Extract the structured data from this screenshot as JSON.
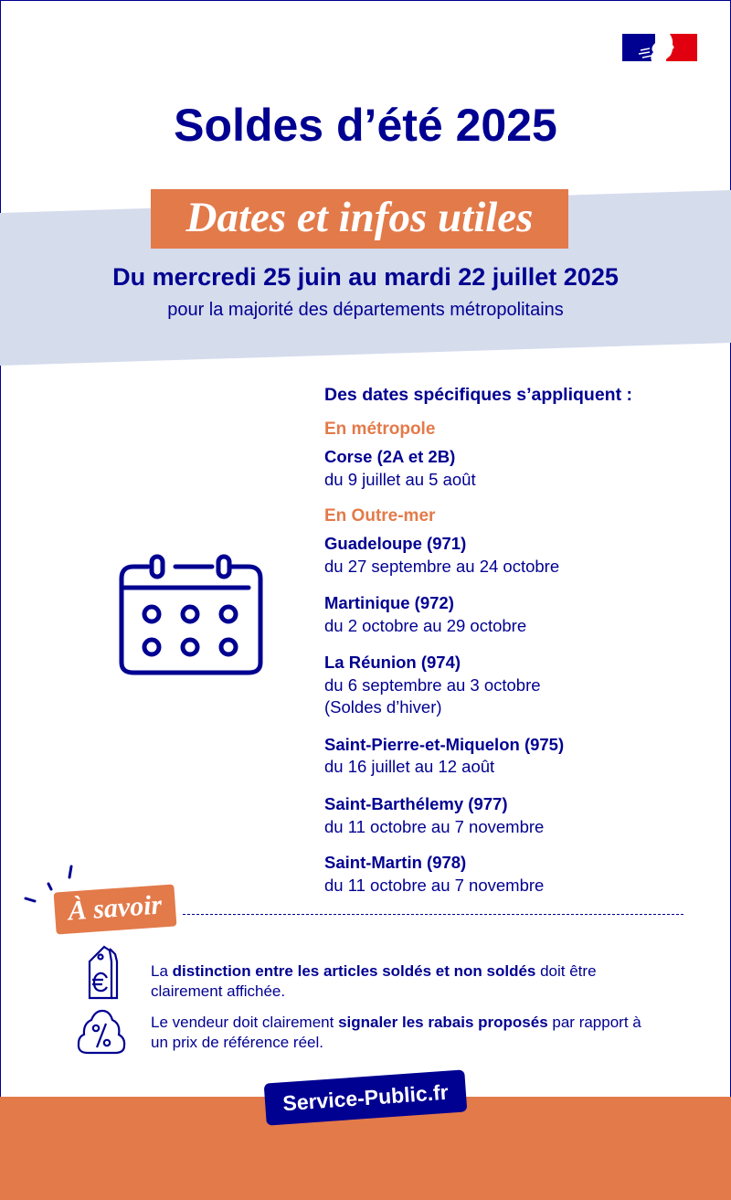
{
  "colors": {
    "navy": "#000091",
    "orange": "#e37a4a",
    "band": "#d5dcec",
    "red": "#e1000f"
  },
  "logo": {
    "name": "republique-francaise-logo"
  },
  "title": "Soldes d’été 2025",
  "banner": "Dates et infos utiles",
  "main_date": "Du mercredi 25 juin au mardi 22 juillet 2025",
  "main_sub": "pour la majorité des départements métropolitains",
  "specific": {
    "heading": "Des dates spécifiques s’appliquent :",
    "metropole": "En métropole",
    "outremer": "En Outre-mer",
    "regions": [
      {
        "name": "Corse (2A et 2B)",
        "dates": "du 9 juillet au 5 août"
      },
      {
        "name": "Guadeloupe (971)",
        "dates": "du 27 septembre au 24 octobre"
      },
      {
        "name": "Martinique (972)",
        "dates": "du 2 octobre au 29 octobre"
      },
      {
        "name": "La Réunion (974)",
        "dates": "du 6 septembre au 3 octobre",
        "note": "(Soldes d’hiver)"
      },
      {
        "name": "Saint-Pierre-et-Miquelon (975)",
        "dates": "du 16 juillet au 12 août"
      },
      {
        "name": "Saint-Barthélemy (977)",
        "dates": "du 11 octobre au 7 novembre"
      },
      {
        "name": "Saint-Martin (978)",
        "dates": "du 11 octobre au 7 novembre"
      }
    ]
  },
  "savoir": {
    "label": "À savoir",
    "notes": [
      {
        "pre": "La ",
        "bold": "distinction entre les articles soldés et non soldés",
        "post": " doit être clairement affichée.",
        "icon": "price-tag-euro-icon"
      },
      {
        "pre": "Le vendeur doit clairement ",
        "bold": "signaler les rabais proposés",
        "post": " par rapport à un prix de référence réel.",
        "icon": "percent-badge-icon"
      }
    ]
  },
  "footer": {
    "brand": "Service-Public.fr"
  }
}
